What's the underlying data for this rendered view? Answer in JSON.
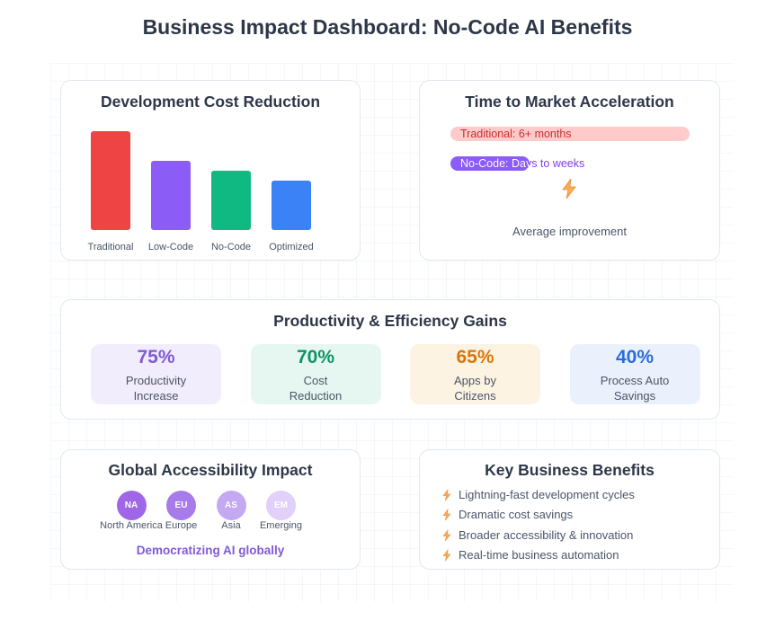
{
  "header": {
    "title": "Business Impact Dashboard: No-Code AI Benefits"
  },
  "dev_cost": {
    "title": "Development Cost Reduction",
    "chart_data": {
      "type": "bar",
      "categories": [
        "Traditional",
        "Low-Code",
        "No-Code",
        "Optimized"
      ],
      "values": [
        100,
        70,
        60,
        50
      ],
      "colors": [
        "#ef4444",
        "#8b5cf6",
        "#10b981",
        "#3b82f6"
      ]
    }
  },
  "time_to_market": {
    "title": "Time to Market Acceleration",
    "traditional": {
      "label": "Traditional: 6+ months",
      "fill": 1.0,
      "color": "#fecaca",
      "text_color": "#c53030"
    },
    "nocode": {
      "label": "No-Code: Days to weeks",
      "fill": 0.33,
      "color": "#8b5cf6",
      "text_color": "#7c3aed"
    },
    "icon": "lightning-icon",
    "caption": "Average improvement"
  },
  "productivity": {
    "title": "Productivity & Efficiency Gains",
    "stats": [
      {
        "value": "75%",
        "label_line1": "Productivity",
        "label_line2": "Increase",
        "bg": "#f1edfc",
        "color": "#805ad5"
      },
      {
        "value": "70%",
        "label_line1": "Cost",
        "label_line2": "Reduction",
        "bg": "#e6f7f1",
        "color": "#0f9463"
      },
      {
        "value": "65%",
        "label_line1": "Apps by",
        "label_line2": "Citizens",
        "bg": "#fdf3e3",
        "color": "#d97706"
      },
      {
        "value": "40%",
        "label_line1": "Process Auto",
        "label_line2": "Savings",
        "bg": "#eaf1fd",
        "color": "#2b6cd9"
      }
    ]
  },
  "global": {
    "title": "Global Accessibility Impact",
    "regions": [
      {
        "code": "NA",
        "name": "North America",
        "color": "#9f67e8"
      },
      {
        "code": "EU",
        "name": "Europe",
        "color": "#a77be9"
      },
      {
        "code": "AS",
        "name": "Asia",
        "color": "#c4a8f2"
      },
      {
        "code": "EM",
        "name": "Emerging",
        "color": "#e0d0fa"
      }
    ],
    "footer": "Democratizing AI globally"
  },
  "benefits": {
    "title": "Key Business Benefits",
    "icon": "lightning-icon",
    "items": [
      "Lightning-fast development cycles",
      "Dramatic cost savings",
      "Broader accessibility & innovation",
      "Real-time business automation"
    ]
  }
}
